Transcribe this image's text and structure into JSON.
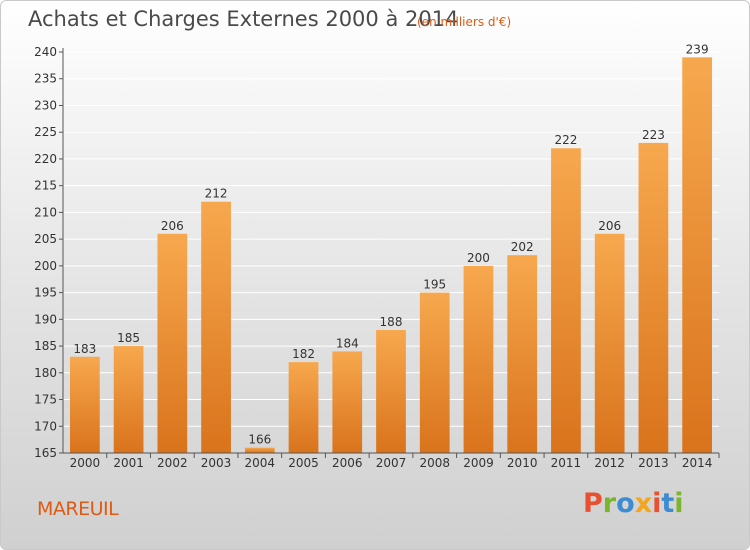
{
  "header": {
    "title": "Achats et Charges Externes 2000 à 2014",
    "subtitle": "(en milliers d'€)"
  },
  "footer": {
    "commune": "MAREUIL",
    "logo_text": "Proxiti",
    "logo_colors": [
      "#e9502f",
      "#7ab52b",
      "#3d8cd1",
      "#f2a51d",
      "#e9502f",
      "#3d8cd1",
      "#7ab52b"
    ]
  },
  "colors": {
    "bar_light": "#f7a84e",
    "bar_dark": "#d9731c",
    "grid": "#ffffff",
    "axis_text": "#333333"
  },
  "chart_data": {
    "type": "bar",
    "categories": [
      "2000",
      "2001",
      "2002",
      "2003",
      "2004",
      "2005",
      "2006",
      "2007",
      "2008",
      "2009",
      "2010",
      "2011",
      "2012",
      "2013",
      "2014"
    ],
    "values": [
      183,
      185,
      206,
      212,
      166,
      182,
      184,
      188,
      195,
      200,
      202,
      222,
      206,
      223,
      239
    ],
    "ylim": [
      165,
      240
    ],
    "yticks": [
      165,
      170,
      175,
      180,
      185,
      190,
      195,
      200,
      205,
      210,
      215,
      220,
      225,
      230,
      235,
      240
    ],
    "grid": true,
    "data_labels": true
  }
}
